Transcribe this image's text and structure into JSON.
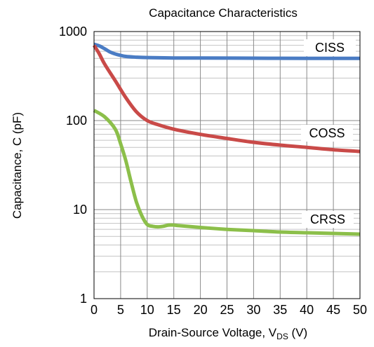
{
  "chart_data": {
    "type": "line",
    "title": "Capacitance Characteristics",
    "xlabel": {
      "main": "Drain-Source Voltage, V",
      "sub": "DS",
      "tail": " (V)"
    },
    "ylabel": "Capacitance, C (pF)",
    "x_scale": "linear",
    "y_scale": "log",
    "xlim": [
      0,
      50
    ],
    "ylim": [
      1,
      1000
    ],
    "xticks": [
      "0",
      "5",
      "10",
      "15",
      "20",
      "25",
      "30",
      "35",
      "40",
      "45",
      "50"
    ],
    "yticks": [
      "1",
      "10",
      "100",
      "1000"
    ],
    "grid": true,
    "series": [
      {
        "name": "CISS",
        "color": "#4a7cc4",
        "x": [
          0,
          1,
          2,
          3,
          4,
          5,
          6,
          8,
          10,
          15,
          20,
          30,
          40,
          50
        ],
        "y": [
          720,
          690,
          640,
          590,
          560,
          540,
          525,
          515,
          510,
          505,
          505,
          502,
          500,
          500
        ]
      },
      {
        "name": "COSS",
        "color": "#c94a48",
        "x": [
          0,
          1,
          2,
          4,
          6,
          8,
          10,
          12,
          15,
          20,
          25,
          30,
          35,
          40,
          45,
          50
        ],
        "y": [
          700,
          560,
          430,
          280,
          180,
          125,
          100,
          90,
          80,
          70,
          63,
          57,
          53,
          50,
          47,
          45
        ]
      },
      {
        "name": "CRSS",
        "color": "#8cbf4a",
        "x": [
          0,
          2,
          4,
          5,
          6,
          7,
          8,
          9,
          10,
          11,
          12,
          13,
          14,
          15,
          16,
          20,
          25,
          30,
          35,
          40,
          45,
          50
        ],
        "y": [
          130,
          110,
          80,
          55,
          35,
          20,
          12,
          8.5,
          6.8,
          6.5,
          6.4,
          6.5,
          6.7,
          6.7,
          6.6,
          6.3,
          6.0,
          5.8,
          5.6,
          5.5,
          5.4,
          5.3
        ]
      }
    ]
  }
}
